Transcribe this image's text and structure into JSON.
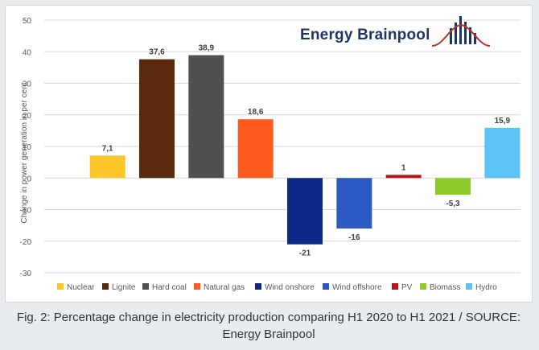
{
  "chart_data": {
    "type": "bar",
    "title": "",
    "xlabel": "",
    "ylabel": "Change in power generation in per cent",
    "ylim": [
      -30,
      50
    ],
    "yticks": [
      50,
      40,
      30,
      20,
      10,
      0,
      -10,
      -20,
      -30
    ],
    "grid": true,
    "legend_position": "bottom",
    "categories": [
      "Nuclear",
      "Lignite",
      "Hard coal",
      "Natural gas",
      "Wind onshore",
      "Wind offshore",
      "PV",
      "Biomass",
      "Hydro"
    ],
    "values": [
      7.1,
      37.6,
      38.9,
      18.6,
      -21,
      -16,
      1,
      -5.3,
      15.9
    ],
    "value_labels": [
      "7,1",
      "37,6",
      "38,9",
      "18,6",
      "-21",
      "-16",
      "1",
      "-5,3",
      "15,9"
    ],
    "colors": [
      "#ffc629",
      "#5a2a0c",
      "#505050",
      "#ff5b1f",
      "#0d2a8a",
      "#2c5ac2",
      "#c0101a",
      "#8ccc2a",
      "#5cc4f5"
    ]
  },
  "logo": {
    "text": "Energy Brainpool",
    "text_color": "#1f3566",
    "accent_color": "#c0302a"
  },
  "caption": "Fig. 2: Percentage change in electricity production comparing H1 2020 to H1 2021 / SOURCE: Energy Brainpool"
}
